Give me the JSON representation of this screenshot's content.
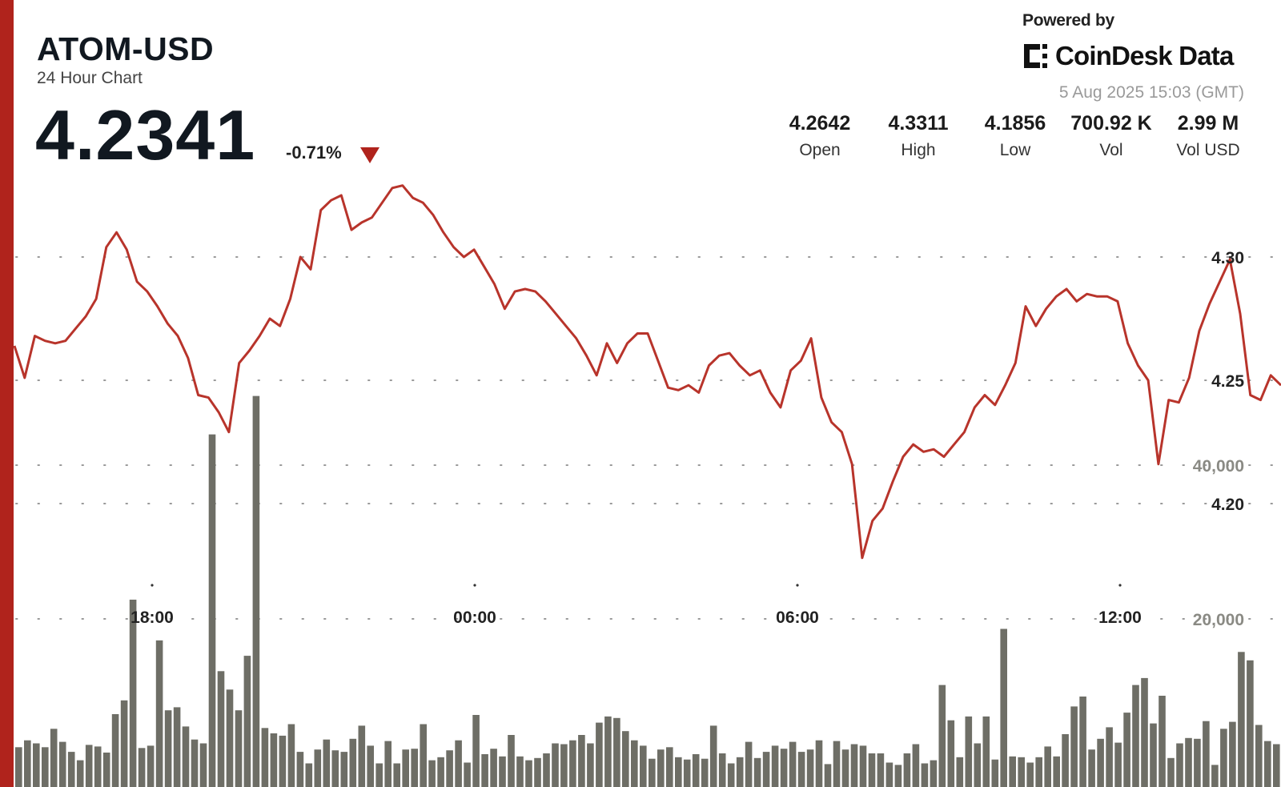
{
  "header": {
    "pair": "ATOM-USD",
    "subtitle": "24 Hour Chart",
    "price": "4.2341",
    "change": "-0.71%"
  },
  "branding": {
    "powered_by": "Powered by",
    "name": "CoinDesk Data",
    "timestamp": "5 Aug 2025 15:03 (GMT)"
  },
  "stats": [
    {
      "value": "4.2642",
      "label": "Open"
    },
    {
      "value": "4.3311",
      "label": "High"
    },
    {
      "value": "4.1856",
      "label": "Low"
    },
    {
      "value": "700.92 K",
      "label": "Vol"
    },
    {
      "value": "2.99 M",
      "label": "Vol USD"
    }
  ],
  "colors": {
    "accent": "#b0231c",
    "line": "#b8342b",
    "volume": "#6e6e66",
    "grid": "#999999"
  },
  "chart_data": {
    "type": "area",
    "x_tick_labels": [
      "18:00",
      "00:00",
      "06:00",
      "12:00"
    ],
    "price_axis": {
      "ticks": [
        4.2,
        4.25,
        4.3
      ],
      "tick_labels": [
        "4.20",
        "4.25",
        "4.30"
      ],
      "range": [
        4.163,
        4.334
      ]
    },
    "volume_axis": {
      "ticks": [
        20000,
        40000
      ],
      "tick_labels": [
        "20,000",
        "40,000"
      ],
      "range": [
        0,
        61000
      ]
    },
    "grid": true,
    "price": [
      4.264,
      4.251,
      4.268,
      4.266,
      4.265,
      4.266,
      4.271,
      4.276,
      4.283,
      4.304,
      4.31,
      4.303,
      4.29,
      4.286,
      4.28,
      4.273,
      4.268,
      4.259,
      4.244,
      4.243,
      4.237,
      4.229,
      4.257,
      4.262,
      4.268,
      4.275,
      4.272,
      4.283,
      4.3,
      4.295,
      4.319,
      4.323,
      4.325,
      4.311,
      4.314,
      4.316,
      4.322,
      4.328,
      4.329,
      4.324,
      4.322,
      4.317,
      4.31,
      4.304,
      4.3,
      4.303,
      4.296,
      4.289,
      4.279,
      4.286,
      4.287,
      4.286,
      4.282,
      4.277,
      4.272,
      4.267,
      4.26,
      4.252,
      4.265,
      4.257,
      4.265,
      4.269,
      4.269,
      4.258,
      4.247,
      4.246,
      4.248,
      4.245,
      4.256,
      4.26,
      4.261,
      4.256,
      4.252,
      4.254,
      4.245,
      4.239,
      4.254,
      4.258,
      4.267,
      4.243,
      4.233,
      4.229,
      4.216,
      4.178,
      4.193,
      4.198,
      4.209,
      4.219,
      4.224,
      4.221,
      4.222,
      4.219,
      4.224,
      4.229,
      4.239,
      4.244,
      4.24,
      4.248,
      4.257,
      4.28,
      4.272,
      4.279,
      4.284,
      4.287,
      4.282,
      4.285,
      4.284,
      4.284,
      4.282,
      4.265,
      4.256,
      4.25,
      4.216,
      4.242,
      4.241,
      4.251,
      4.27,
      4.281,
      4.29,
      4.299,
      4.277,
      4.244,
      4.242,
      4.252,
      4.248
    ],
    "volume": [
      3300,
      4200,
      3800,
      3300,
      5700,
      4000,
      2700,
      1600,
      3600,
      3400,
      2600,
      7600,
      9400,
      22500,
      3200,
      3500,
      17200,
      8100,
      8500,
      6000,
      4300,
      3800,
      44000,
      13200,
      10800,
      8100,
      15200,
      49000,
      5800,
      5100,
      4800,
      6300,
      2700,
      1200,
      3000,
      4300,
      2900,
      2700,
      4400,
      6100,
      3500,
      1200,
      4100,
      1200,
      3000,
      3100,
      6300,
      1600,
      2000,
      2900,
      4200,
      1300,
      7500,
      2400,
      3100,
      2100,
      4900,
      2100,
      1600,
      1900,
      2500,
      3800,
      3700,
      4200,
      4900,
      3800,
      6500,
      7300,
      7100,
      5400,
      4200,
      3500,
      1800,
      3000,
      3300,
      2000,
      1700,
      2400,
      1800,
      6100,
      2500,
      1200,
      2000,
      4000,
      1900,
      2700,
      3500,
      3100,
      4000,
      2700,
      3000,
      4200,
      1100,
      4100,
      3000,
      3700,
      3500,
      2500,
      2500,
      1300,
      1000,
      2500,
      3700,
      1200,
      1600,
      11400,
      6800,
      2000,
      7300,
      3800,
      7300,
      1700,
      18700,
      2100,
      2000,
      1300,
      2000,
      3400,
      2100,
      5000,
      8600,
      9900,
      3000,
      4400,
      5900,
      3900,
      7800,
      11400,
      12300,
      6400,
      10000,
      1900,
      3800,
      4500,
      4400,
      6700,
      1000,
      5700,
      6600,
      15700,
      14600,
      6200,
      4100,
      3700
    ]
  }
}
